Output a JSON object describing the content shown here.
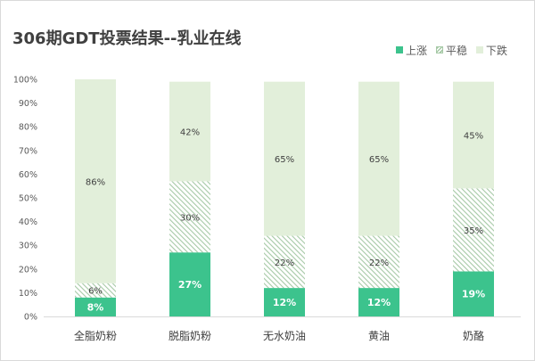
{
  "chart_data": {
    "type": "bar",
    "stacked": true,
    "title": "306期GDT投票结果--乳业在线",
    "categories": [
      "全脂奶粉",
      "脱脂奶粉",
      "无水奶油",
      "黄油",
      "奶酪"
    ],
    "series": [
      {
        "name": "上涨",
        "values": [
          8,
          27,
          12,
          12,
          19
        ],
        "labels": [
          "8%",
          "27%",
          "12%",
          "12%",
          "19%"
        ],
        "color": "#3cc38d",
        "pattern": "solid"
      },
      {
        "name": "平稳",
        "values": [
          6,
          30,
          22,
          22,
          35
        ],
        "labels": [
          "6%",
          "30%",
          "22%",
          "22%",
          "35%"
        ],
        "color": "#a6c9a6",
        "pattern": "hatched"
      },
      {
        "name": "下跌",
        "values": [
          86,
          42,
          65,
          65,
          45
        ],
        "labels": [
          "86%",
          "42%",
          "65%",
          "65%",
          "45%"
        ],
        "color": "#e2efda",
        "pattern": "solid"
      }
    ],
    "yticks": [
      "0%",
      "10%",
      "20%",
      "30%",
      "40%",
      "50%",
      "60%",
      "70%",
      "80%",
      "90%",
      "100%"
    ],
    "ylim": [
      0,
      100
    ],
    "legend_position": "top-right",
    "grid": false
  }
}
